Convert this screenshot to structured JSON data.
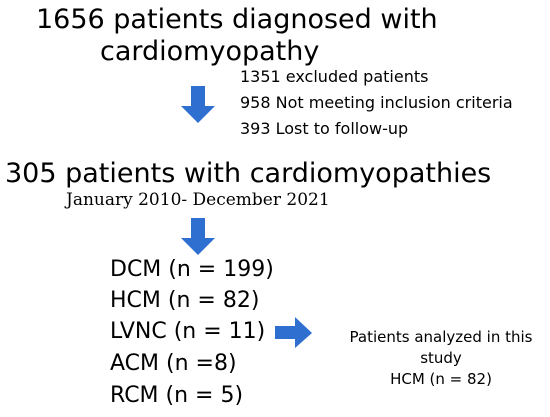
{
  "diagram": {
    "step1": {
      "line1": "1656 patients diagnosed with",
      "line2": "cardiomyopathy"
    },
    "exclusion": {
      "total": "1351 excluded patients",
      "criteria": "958 Not meeting inclusion criteria",
      "lost": "393 Lost to follow-up"
    },
    "step2": {
      "title": "305 patients with cardiomyopathies",
      "period": "January 2010- December 2021"
    },
    "subtypes": [
      "DCM (n = 199)",
      "HCM (n = 82)",
      "LVNC (n = 11)",
      "ACM (n =8)",
      "RCM (n = 5)"
    ],
    "analyzed": {
      "line1": "Patients analyzed in this",
      "line2": "study",
      "line3": "HCM (n = 82)"
    },
    "colors": {
      "arrow": "#2e6fd0",
      "text": "#000000"
    }
  }
}
